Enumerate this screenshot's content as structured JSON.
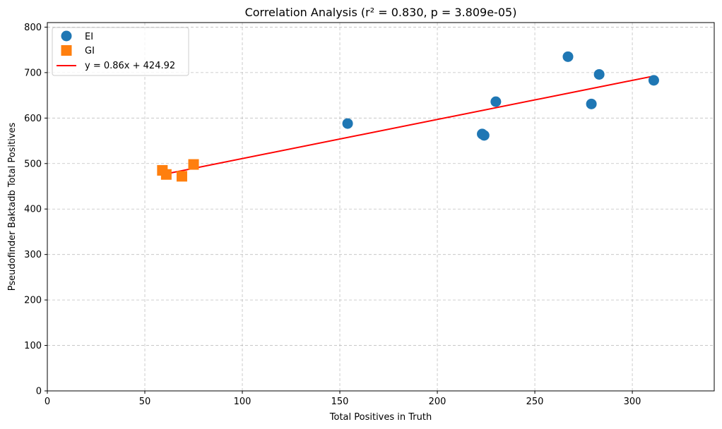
{
  "chart_data": {
    "type": "scatter",
    "title": "Correlation Analysis (r² = 0.830, p = 3.809e-05)",
    "xlabel": "Total Positives in Truth",
    "ylabel": "Pseudofinder Baktadb Total Positives",
    "xlim": [
      0,
      342
    ],
    "ylim": [
      0,
      810
    ],
    "xticks": [
      0,
      50,
      100,
      150,
      200,
      250,
      300
    ],
    "yticks": [
      0,
      100,
      200,
      300,
      400,
      500,
      600,
      700,
      800
    ],
    "grid": true,
    "legend_position": "top-left",
    "series": [
      {
        "name": "EI",
        "marker": "circle",
        "color": "#1f77b4",
        "points": [
          {
            "x": 154,
            "y": 588
          },
          {
            "x": 223,
            "y": 565
          },
          {
            "x": 224,
            "y": 562
          },
          {
            "x": 230,
            "y": 636
          },
          {
            "x": 267,
            "y": 735
          },
          {
            "x": 279,
            "y": 631
          },
          {
            "x": 283,
            "y": 696
          },
          {
            "x": 311,
            "y": 683
          }
        ]
      },
      {
        "name": "GI",
        "marker": "square",
        "color": "#ff7f0e",
        "points": [
          {
            "x": 59,
            "y": 485
          },
          {
            "x": 61,
            "y": 476
          },
          {
            "x": 69,
            "y": 472
          },
          {
            "x": 75,
            "y": 498
          }
        ]
      }
    ],
    "fit_line": {
      "name": "y = 0.86x + 424.92",
      "color": "#ff0000",
      "slope": 0.86,
      "intercept": 424.92,
      "x_range": [
        59,
        311
      ]
    }
  }
}
